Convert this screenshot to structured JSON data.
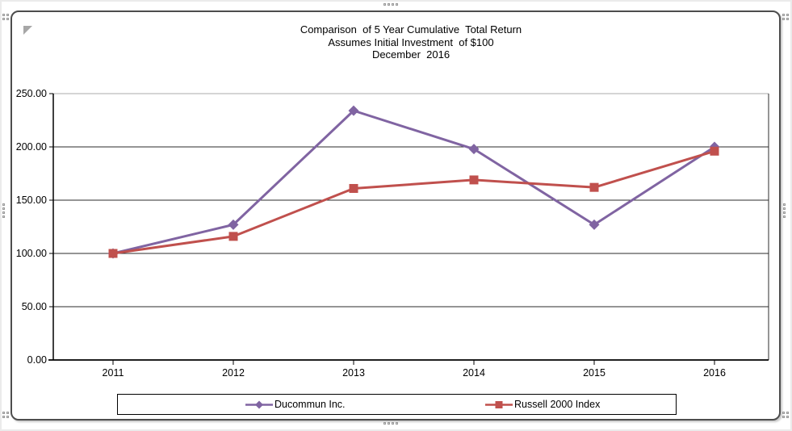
{
  "chart_data": {
    "type": "line",
    "title": "Comparison of 5 Year Cumulative Total Return",
    "title_lines": [
      "Comparison  of 5 Year Cumulative  Total Return",
      "Assumes Initial Investment  of $100",
      "December  2016"
    ],
    "categories": [
      "2011",
      "2012",
      "2013",
      "2014",
      "2015",
      "2016"
    ],
    "series": [
      {
        "name": "Ducommun Inc.",
        "color": "#8064A2",
        "marker": "diamond",
        "values": [
          100,
          127,
          234,
          198,
          127,
          200
        ]
      },
      {
        "name": "Russell 2000 Index",
        "color": "#C0504D",
        "marker": "square",
        "values": [
          100,
          116,
          161,
          169,
          162,
          196
        ]
      }
    ],
    "xlabel": "",
    "ylabel": "",
    "ylim": [
      0,
      250
    ],
    "yticks": [
      0,
      50,
      100,
      150,
      200,
      250
    ],
    "ytick_labels": [
      "0.00",
      "50.00",
      "100.00",
      "150.00",
      "200.00",
      "250.00"
    ],
    "grid": true,
    "legend_position": "bottom-center"
  }
}
